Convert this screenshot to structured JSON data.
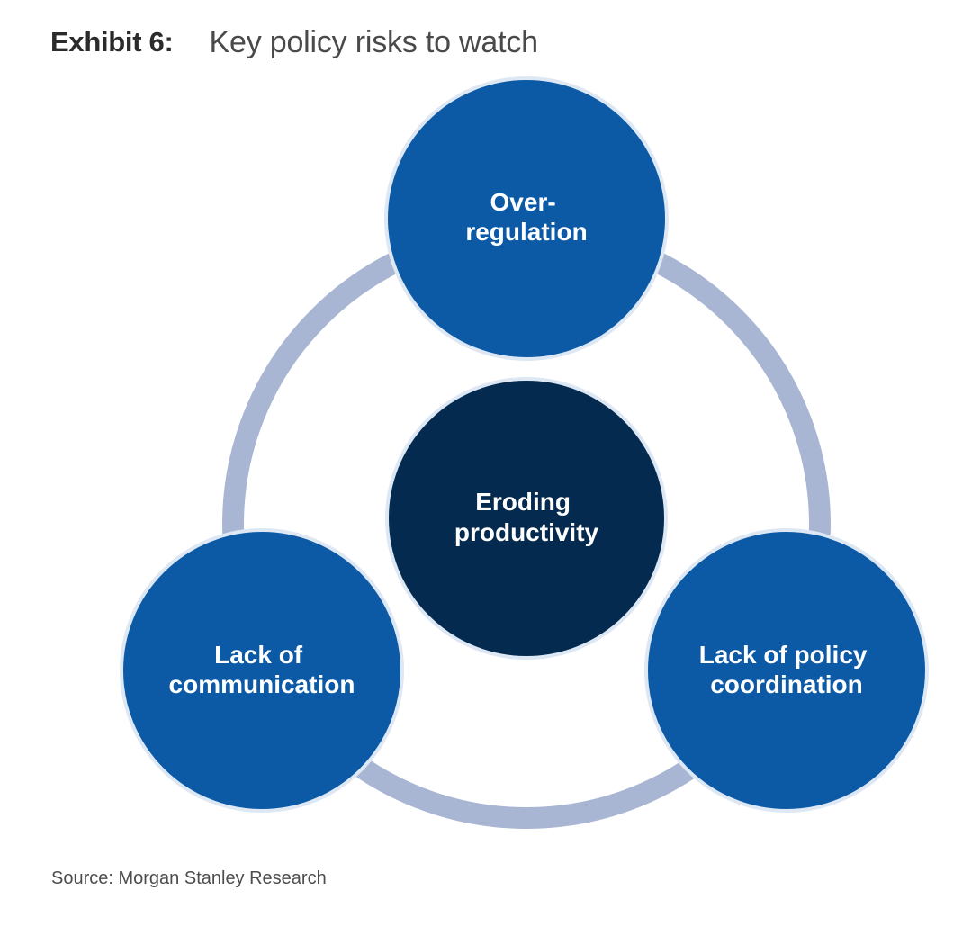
{
  "header": {
    "exhibit_label": "Exhibit 6:",
    "title": "Key policy risks to watch"
  },
  "diagram": {
    "center": {
      "lines": [
        "Eroding",
        "productivity"
      ]
    },
    "nodes": [
      {
        "id": "over-regulation",
        "lines": [
          "Over-",
          "regulation"
        ]
      },
      {
        "id": "lack-of-communication",
        "lines": [
          "Lack of",
          "communication"
        ]
      },
      {
        "id": "lack-of-policy-coordination",
        "lines": [
          "Lack of policy",
          "coordination"
        ]
      }
    ]
  },
  "colors": {
    "node_fill": "#0c5aa6",
    "center_fill": "#052a4f",
    "ring": "#a9b6d3",
    "node_border": "#dde8f4"
  },
  "footer": {
    "source": "Source: Morgan Stanley Research"
  }
}
